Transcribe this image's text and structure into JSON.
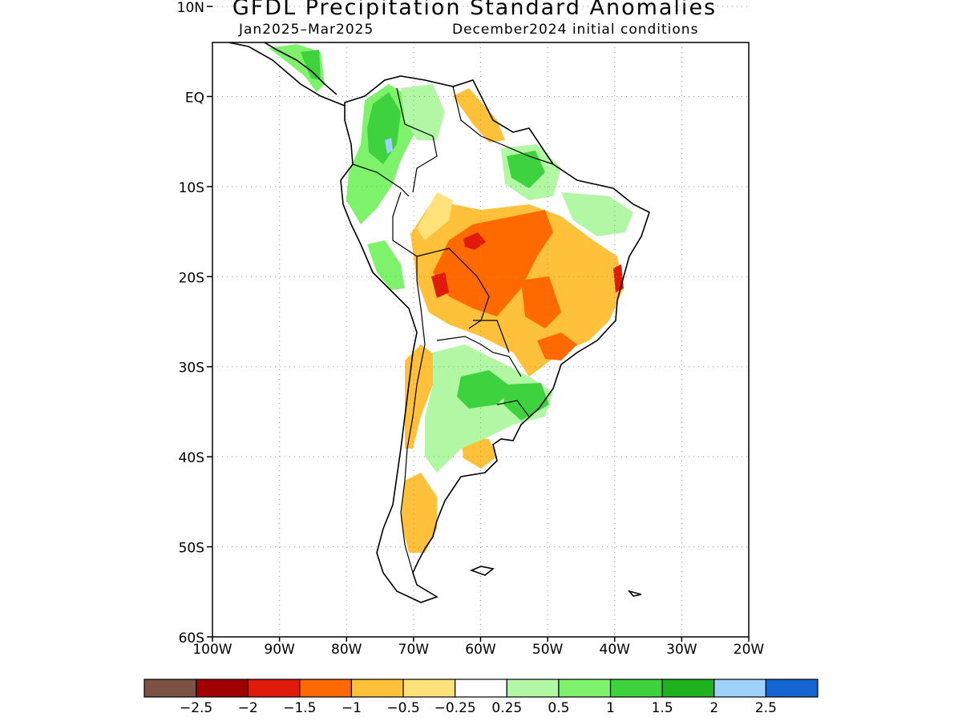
{
  "title": "GFDL Precipitation Standard Anomalies",
  "subtitle_left": "Jan2025–Mar2025",
  "subtitle_right": "December2024 initial conditions",
  "map": {
    "lon_range": [
      -100,
      -20
    ],
    "lat_range": [
      -60,
      6
    ],
    "lat_ticks": [
      {
        "value": 10,
        "label": "10N"
      },
      {
        "value": 0,
        "label": "EQ"
      },
      {
        "value": -10,
        "label": "10S"
      },
      {
        "value": -20,
        "label": "20S"
      },
      {
        "value": -30,
        "label": "30S"
      },
      {
        "value": -40,
        "label": "40S"
      },
      {
        "value": -50,
        "label": "50S"
      },
      {
        "value": -60,
        "label": "60S"
      }
    ],
    "lon_ticks": [
      {
        "value": -100,
        "label": "100W"
      },
      {
        "value": -90,
        "label": "90W"
      },
      {
        "value": -80,
        "label": "80W"
      },
      {
        "value": -70,
        "label": "70W"
      },
      {
        "value": -60,
        "label": "60W"
      },
      {
        "value": -50,
        "label": "50W"
      },
      {
        "value": -40,
        "label": "40W"
      },
      {
        "value": -30,
        "label": "30W"
      },
      {
        "value": -20,
        "label": "20W"
      }
    ],
    "grid": "dotted"
  },
  "colorbar": {
    "colors": [
      "#7a5246",
      "#a10000",
      "#e01b0a",
      "#ff6a00",
      "#ffc03a",
      "#ffe37a",
      "#ffffff",
      "#b2f7a4",
      "#7df26a",
      "#3ed33e",
      "#1fb21f",
      "#9dd3fa",
      "#1464d2"
    ],
    "labels": [
      "−2.5",
      "−2",
      "−1.5",
      "−1",
      "−0.5",
      "−0.25",
      "0.25",
      "0.5",
      "1",
      "1.5",
      "2",
      "2.5"
    ]
  }
}
